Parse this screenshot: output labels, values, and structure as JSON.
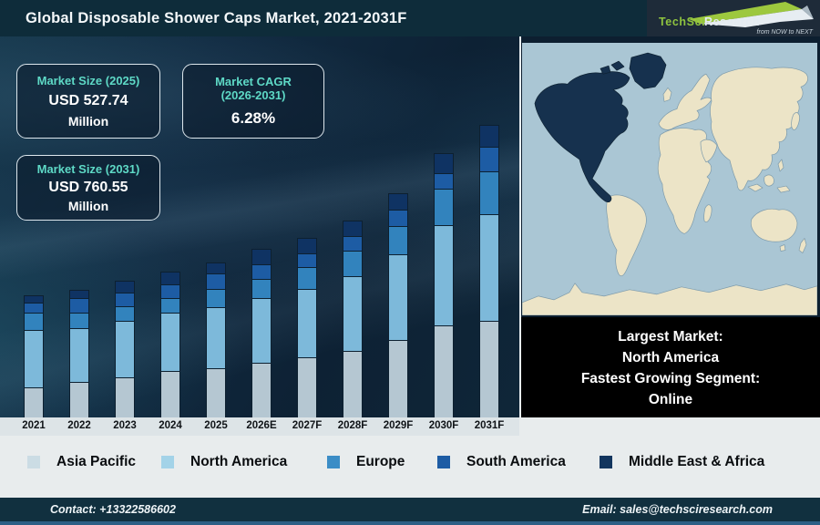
{
  "header": {
    "title": "Global Disposable Shower Caps Market, 2021-2031F",
    "logo": {
      "brand_1": "TechSci",
      "brand_2": "Research",
      "tagline": "from NOW to NEXT"
    }
  },
  "info_boxes": {
    "market_size_2025": {
      "title": "Market Size (2025)",
      "value": "USD 527.74",
      "unit": "Million"
    },
    "market_cagr": {
      "title": "Market CAGR",
      "subtitle": "(2026-2031)",
      "value": "6.28%"
    },
    "market_size_2031": {
      "title": "Market Size (2031)",
      "value": "USD 760.55",
      "unit": "Million"
    }
  },
  "chart_data": {
    "type": "bar",
    "stacked": true,
    "title": "Global Disposable Shower Caps Market, 2021-2031F",
    "categories": [
      "2021",
      "2022",
      "2023",
      "2024",
      "2025",
      "2026E",
      "2027F",
      "2028F",
      "2029F",
      "2030F",
      "2031F"
    ],
    "unit": "relative segment height (no value axis shown in figure)",
    "series": [
      {
        "name": "Asia Pacific",
        "color": "#b5c7d2",
        "values": [
          33,
          39,
          44,
          51,
          54,
          60,
          66,
          73,
          85,
          101,
          106
        ]
      },
      {
        "name": "North America",
        "color": "#7db9da",
        "values": [
          63,
          59,
          62,
          64,
          67,
          71,
          75,
          82,
          94,
          110,
          117
        ]
      },
      {
        "name": "Europe",
        "color": "#3283bd",
        "values": [
          19,
          17,
          16,
          16,
          20,
          21,
          24,
          28,
          31,
          40,
          47
        ]
      },
      {
        "name": "South America",
        "color": "#1d5ca4",
        "values": [
          11,
          16,
          15,
          15,
          17,
          16,
          15,
          16,
          18,
          17,
          27
        ]
      },
      {
        "name": "Middle East & Africa",
        "color": "#0f3363",
        "values": [
          8,
          9,
          13,
          14,
          12,
          17,
          17,
          17,
          18,
          22,
          24
        ]
      }
    ],
    "annotations": [
      "Market Size (2025): USD 527.74 Million",
      "Market CAGR (2026-2031): 6.28%",
      "Market Size (2031): USD 760.55 Million"
    ],
    "legend_position": "bottom",
    "y_axis": {
      "visible": false
    }
  },
  "legend": {
    "items": [
      {
        "label": "Asia Pacific",
        "color": "#cbdce4",
        "x": 30
      },
      {
        "label": "North America",
        "color": "#a3d3e8",
        "x": 177
      },
      {
        "label": "Europe",
        "color": "#3b8dc6",
        "x": 359
      },
      {
        "label": "South America",
        "color": "#1d5ca4",
        "x": 480
      },
      {
        "label": "Middle East & Africa",
        "color": "#12355e",
        "x": 658
      }
    ]
  },
  "map": {
    "highlighted_region": "North America"
  },
  "highlight_box": {
    "line_1": "Largest Market:",
    "line_2": "North America",
    "line_3": "Fastest Growing Segment:",
    "line_4": "Online"
  },
  "footer": {
    "contact": "Contact: +13322586602",
    "email": "Email: sales@techsciresearch.com"
  },
  "colors": {
    "header_bg": "#0e2c3a",
    "accent_teal": "#5ed9c6",
    "map_ocean": "#aac6d4",
    "map_land": "#ece4c7",
    "map_highlight": "#16314e",
    "footer_bg": "#11303f",
    "bottom_strip": "#2d5f85"
  }
}
